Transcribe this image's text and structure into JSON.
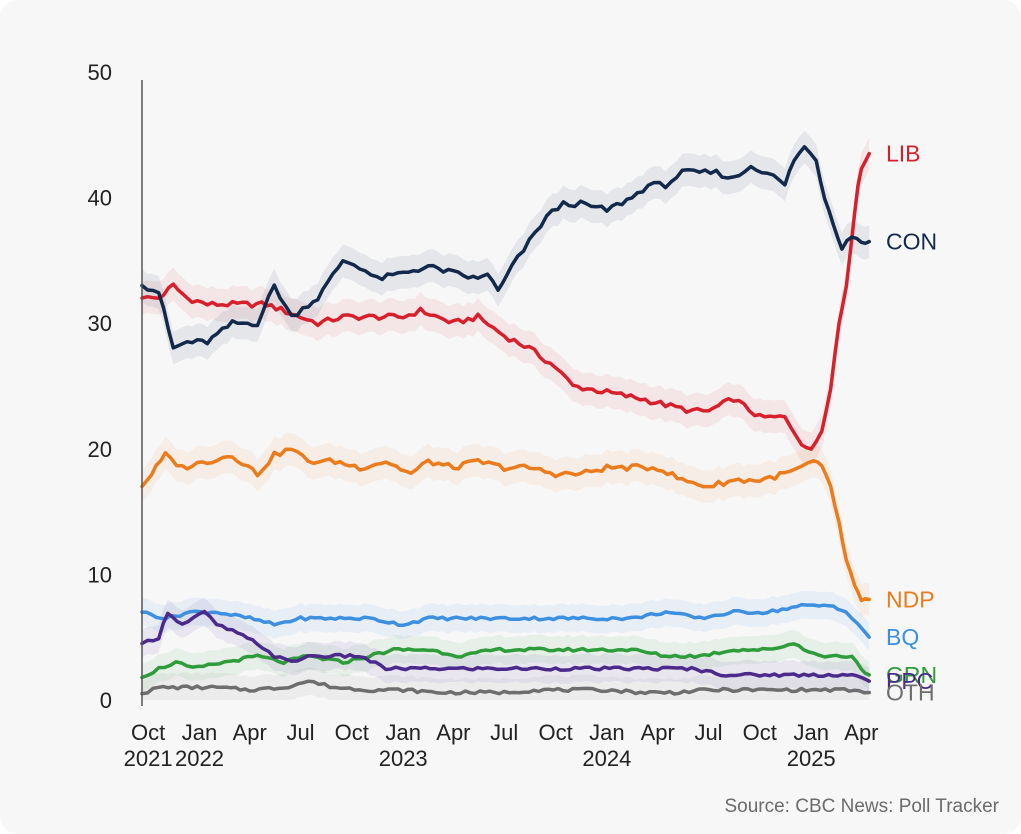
{
  "source": "Source: CBC News: Poll Tracker",
  "chart_data": {
    "type": "line",
    "title": "",
    "xlabel": "",
    "ylabel": "",
    "ylim": [
      0,
      50
    ],
    "xlim": [
      "2021-09-20",
      "2025-04-20"
    ],
    "yticks": [
      0,
      10,
      20,
      30,
      40,
      50
    ],
    "xticks": [
      {
        "date": "2021-10-01",
        "label": "Oct"
      },
      {
        "date": "2022-01-01",
        "label": "Jan"
      },
      {
        "date": "2022-04-01",
        "label": "Apr"
      },
      {
        "date": "2022-07-01",
        "label": "Jul"
      },
      {
        "date": "2022-10-01",
        "label": "Oct"
      },
      {
        "date": "2023-01-01",
        "label": "Jan"
      },
      {
        "date": "2023-04-01",
        "label": "Apr"
      },
      {
        "date": "2023-07-01",
        "label": "Jul"
      },
      {
        "date": "2023-10-01",
        "label": "Oct"
      },
      {
        "date": "2024-01-01",
        "label": "Jan"
      },
      {
        "date": "2024-04-01",
        "label": "Apr"
      },
      {
        "date": "2024-07-01",
        "label": "Jul"
      },
      {
        "date": "2024-10-01",
        "label": "Oct"
      },
      {
        "date": "2025-01-01",
        "label": "Jan"
      },
      {
        "date": "2025-04-01",
        "label": "Apr"
      }
    ],
    "year_labels": [
      {
        "date": "2021-10-01",
        "label": "2021"
      },
      {
        "date": "2022-01-01",
        "label": "2022"
      },
      {
        "date": "2023-01-01",
        "label": "2023"
      },
      {
        "date": "2024-01-01",
        "label": "2024"
      },
      {
        "date": "2025-01-01",
        "label": "2025"
      }
    ],
    "grid": false,
    "legend": "direct labels at right end of lines",
    "series": [
      {
        "name": "LIB",
        "color": "#d7202b",
        "x": [
          "2021-09-20",
          "2021-10-20",
          "2021-11-15",
          "2021-12-10",
          "2022-01-15",
          "2022-03-01",
          "2022-05-01",
          "2022-07-01",
          "2022-08-01",
          "2022-09-15",
          "2022-11-01",
          "2023-01-01",
          "2023-02-01",
          "2023-04-01",
          "2023-05-15",
          "2023-07-01",
          "2023-08-15",
          "2023-10-01",
          "2023-11-01",
          "2024-01-01",
          "2024-03-01",
          "2024-04-15",
          "2024-06-01",
          "2024-07-01",
          "2024-08-15",
          "2024-10-01",
          "2024-11-15",
          "2024-12-15",
          "2025-01-01",
          "2025-01-20",
          "2025-02-05",
          "2025-02-20",
          "2025-03-05",
          "2025-03-20",
          "2025-04-01",
          "2025-04-15"
        ],
        "y": [
          32.0,
          32.0,
          33.0,
          32.0,
          31.5,
          31.5,
          31.5,
          30.5,
          30.0,
          30.5,
          30.5,
          30.5,
          31.0,
          30.0,
          30.5,
          29.0,
          28.0,
          26.5,
          25.0,
          24.5,
          24.0,
          23.5,
          23.0,
          23.0,
          24.0,
          22.5,
          22.5,
          20.5,
          19.8,
          21.5,
          25.0,
          30.0,
          33.0,
          39.0,
          42.5,
          43.5
        ]
      },
      {
        "name": "CON",
        "color": "#13294b",
        "x": [
          "2021-09-20",
          "2021-10-20",
          "2021-11-15",
          "2021-12-10",
          "2022-01-15",
          "2022-03-01",
          "2022-04-15",
          "2022-05-15",
          "2022-06-15",
          "2022-07-15",
          "2022-08-01",
          "2022-09-15",
          "2022-10-15",
          "2022-11-15",
          "2023-01-01",
          "2023-02-15",
          "2023-04-01",
          "2023-05-15",
          "2023-06-01",
          "2023-06-20",
          "2023-07-15",
          "2023-08-15",
          "2023-09-15",
          "2023-10-15",
          "2023-11-15",
          "2024-01-01",
          "2024-02-15",
          "2024-03-15",
          "2024-04-15",
          "2024-05-15",
          "2024-06-15",
          "2024-07-15",
          "2024-08-15",
          "2024-09-15",
          "2024-10-15",
          "2024-11-15",
          "2024-12-01",
          "2024-12-20",
          "2025-01-10",
          "2025-01-25",
          "2025-02-10",
          "2025-02-25",
          "2025-03-15",
          "2025-04-01",
          "2025-04-15"
        ],
        "y": [
          33.0,
          32.5,
          28.0,
          28.5,
          28.5,
          30.0,
          30.0,
          33.0,
          30.5,
          31.5,
          32.0,
          35.0,
          34.5,
          33.5,
          34.0,
          34.5,
          34.0,
          33.5,
          34.0,
          32.5,
          34.5,
          36.5,
          38.5,
          39.5,
          39.5,
          39.0,
          40.0,
          41.0,
          41.0,
          42.0,
          42.0,
          42.0,
          41.5,
          42.5,
          42.0,
          41.0,
          43.0,
          44.0,
          43.0,
          40.0,
          38.0,
          36.0,
          37.0,
          36.5,
          36.5
        ]
      },
      {
        "name": "NDP",
        "color": "#ec7b1c",
        "x": [
          "2021-09-20",
          "2021-11-01",
          "2021-12-01",
          "2022-01-15",
          "2022-03-01",
          "2022-04-15",
          "2022-05-15",
          "2022-06-15",
          "2022-07-15",
          "2022-09-01",
          "2022-10-15",
          "2022-12-01",
          "2023-01-15",
          "2023-02-15",
          "2023-04-01",
          "2023-05-15",
          "2023-07-01",
          "2023-08-15",
          "2023-10-01",
          "2023-11-15",
          "2024-01-01",
          "2024-02-15",
          "2024-04-01",
          "2024-05-15",
          "2024-07-01",
          "2024-08-15",
          "2024-10-01",
          "2024-11-15",
          "2024-12-15",
          "2025-01-05",
          "2025-01-20",
          "2025-02-05",
          "2025-02-20",
          "2025-03-05",
          "2025-03-20",
          "2025-04-01",
          "2025-04-15"
        ],
        "y": [
          17.0,
          19.5,
          18.5,
          19.0,
          19.5,
          18.0,
          19.5,
          20.0,
          19.0,
          19.0,
          18.5,
          19.0,
          18.0,
          19.0,
          18.5,
          19.0,
          18.5,
          18.5,
          18.0,
          18.0,
          18.5,
          18.5,
          18.5,
          17.5,
          17.0,
          17.5,
          17.5,
          18.0,
          18.5,
          19.0,
          18.5,
          17.0,
          14.0,
          11.0,
          9.0,
          8.0,
          8.0
        ]
      },
      {
        "name": "BQ",
        "color": "#3d8fe0",
        "x": [
          "2021-09-20",
          "2021-11-01",
          "2021-12-15",
          "2022-02-01",
          "2022-04-01",
          "2022-05-15",
          "2022-07-01",
          "2022-09-01",
          "2022-11-01",
          "2023-01-01",
          "2023-02-15",
          "2023-04-15",
          "2023-06-15",
          "2023-08-15",
          "2023-10-15",
          "2023-12-15",
          "2024-02-15",
          "2024-04-15",
          "2024-06-15",
          "2024-08-15",
          "2024-10-15",
          "2024-12-15",
          "2025-01-15",
          "2025-02-10",
          "2025-03-05",
          "2025-03-25",
          "2025-04-15"
        ],
        "y": [
          7.0,
          6.5,
          7.0,
          7.0,
          6.5,
          6.0,
          6.5,
          6.5,
          6.5,
          6.0,
          6.5,
          6.5,
          6.5,
          6.5,
          6.5,
          6.5,
          6.5,
          7.0,
          6.5,
          7.0,
          7.0,
          7.5,
          7.5,
          7.5,
          7.0,
          6.0,
          5.0
        ]
      },
      {
        "name": "GRN",
        "color": "#2e9c3a",
        "x": [
          "2021-09-20",
          "2021-10-20",
          "2021-11-20",
          "2021-12-20",
          "2022-02-15",
          "2022-04-15",
          "2022-06-01",
          "2022-07-15",
          "2022-09-15",
          "2022-11-01",
          "2022-12-15",
          "2023-02-15",
          "2023-04-15",
          "2023-06-15",
          "2023-08-15",
          "2023-10-15",
          "2023-12-15",
          "2024-02-15",
          "2024-04-15",
          "2024-06-15",
          "2024-08-15",
          "2024-10-15",
          "2024-12-01",
          "2025-01-15",
          "2025-02-15",
          "2025-03-15",
          "2025-04-01",
          "2025-04-15"
        ],
        "y": [
          1.8,
          2.5,
          3.0,
          2.5,
          3.0,
          3.5,
          3.0,
          3.5,
          3.0,
          3.5,
          4.0,
          4.0,
          3.5,
          4.0,
          4.0,
          4.0,
          4.0,
          4.0,
          3.5,
          3.5,
          4.0,
          4.0,
          4.5,
          3.5,
          3.5,
          3.5,
          2.5,
          2.0
        ]
      },
      {
        "name": "PPC",
        "color": "#4b2a8c",
        "x": [
          "2021-09-20",
          "2021-10-20",
          "2021-11-05",
          "2021-12-01",
          "2022-01-10",
          "2022-02-01",
          "2022-03-01",
          "2022-04-15",
          "2022-05-15",
          "2022-06-15",
          "2022-07-15",
          "2022-09-01",
          "2022-10-15",
          "2022-12-01",
          "2023-02-01",
          "2023-04-01",
          "2023-06-01",
          "2023-08-01",
          "2023-10-01",
          "2023-12-01",
          "2024-02-01",
          "2024-04-01",
          "2024-06-01",
          "2024-08-01",
          "2024-10-01",
          "2024-12-01",
          "2025-02-01",
          "2025-03-15",
          "2025-04-15"
        ],
        "y": [
          4.5,
          5.0,
          7.0,
          6.0,
          7.0,
          6.0,
          5.5,
          4.5,
          3.5,
          3.0,
          3.5,
          3.5,
          3.5,
          2.5,
          2.5,
          2.5,
          2.5,
          2.5,
          2.5,
          2.5,
          2.5,
          2.5,
          2.5,
          2.0,
          2.0,
          2.0,
          2.0,
          2.0,
          1.5
        ]
      },
      {
        "name": "OTH",
        "color": "#6e6e6e",
        "x": [
          "2021-09-20",
          "2021-10-20",
          "2021-12-01",
          "2022-02-01",
          "2022-04-01",
          "2022-06-01",
          "2022-07-15",
          "2022-09-01",
          "2022-11-01",
          "2023-01-01",
          "2023-03-01",
          "2023-05-01",
          "2023-07-01",
          "2023-09-01",
          "2023-11-01",
          "2024-01-01",
          "2024-03-01",
          "2024-05-01",
          "2024-07-01",
          "2024-09-01",
          "2024-11-01",
          "2025-01-01",
          "2025-03-01",
          "2025-04-15"
        ],
        "y": [
          0.5,
          1.0,
          1.0,
          1.0,
          0.8,
          1.0,
          1.5,
          1.0,
          0.8,
          0.8,
          0.6,
          0.6,
          0.6,
          0.8,
          0.8,
          0.8,
          0.6,
          0.6,
          0.8,
          0.8,
          0.8,
          0.8,
          0.8,
          0.6
        ]
      }
    ]
  }
}
